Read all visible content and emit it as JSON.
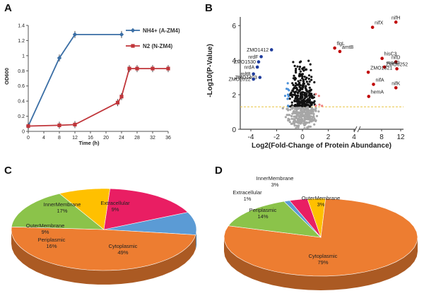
{
  "panels": [
    "A",
    "B",
    "C",
    "D"
  ],
  "chart_data": [
    {
      "panel": "A",
      "type": "line",
      "xlabel": "Time (h)",
      "ylabel": "OD600",
      "xlim": [
        0,
        36
      ],
      "ylim": [
        0,
        1.4
      ],
      "xticks": [
        0,
        4,
        8,
        12,
        16,
        20,
        24,
        28,
        32,
        36
      ],
      "yticks": [
        0,
        0.2,
        0.4,
        0.6,
        0.8,
        1.0,
        1.2,
        1.4
      ],
      "ytick_labels": [
        "0",
        "0.2",
        "0.4",
        "0.6",
        "0.8",
        "1",
        "1.2",
        "1.4"
      ],
      "legend_position": "top-right",
      "series": [
        {
          "name": "NH4+ (A-ZM4)",
          "color": "#3a6ea5",
          "marker": "diamond",
          "x": [
            0,
            8,
            12,
            24
          ],
          "y": [
            0.07,
            0.97,
            1.28,
            1.28
          ]
        },
        {
          "name": "N2 (N-ZM4)",
          "color": "#c0353a",
          "marker": "square",
          "x": [
            0,
            8,
            12,
            23,
            24,
            26,
            28,
            32,
            36
          ],
          "y": [
            0.07,
            0.08,
            0.09,
            0.38,
            0.46,
            0.83,
            0.83,
            0.83,
            0.83
          ]
        }
      ]
    },
    {
      "panel": "B",
      "type": "scatter",
      "xlabel": "Log2(Fold-Change of Protein Abundance)",
      "ylabel": "-Log10(P-Value)",
      "xticks_left": [
        -4,
        -2,
        0,
        2,
        4
      ],
      "xticks_right": [
        4,
        8,
        12
      ],
      "yticks": [
        0,
        2,
        4,
        6
      ],
      "ylim": [
        0,
        6.5
      ],
      "threshold_line_y": 1.3,
      "colors": {
        "up": "#ef7f7f",
        "down": "#4a90d9",
        "sig": "#111111",
        "ns": "#a6a6a6",
        "label_up": "#c00000",
        "label_down": "#1f3c9c",
        "threshold": "#e8c440"
      },
      "labeled_up": [
        {
          "name": "nifH",
          "x": 11,
          "y": 6.2
        },
        {
          "name": "nifX",
          "x": 6.1,
          "y": 5.9
        },
        {
          "name": "flgL",
          "x": 2.5,
          "y": 4.7
        },
        {
          "name": "amtB",
          "x": 2.9,
          "y": 4.5
        },
        {
          "name": "hisC3",
          "x": 8.1,
          "y": 4.1
        },
        {
          "name": "nifD",
          "x": 11,
          "y": 3.9
        },
        {
          "name": "modD",
          "x": 8.6,
          "y": 3.6
        },
        {
          "name": "ZMO0252",
          "x": 11.2,
          "y": 3.5
        },
        {
          "name": "ZMO1821",
          "x": 5.2,
          "y": 3.3
        },
        {
          "name": "nifA",
          "x": 6.3,
          "y": 2.6
        },
        {
          "name": "nifK",
          "x": 11,
          "y": 2.4
        },
        {
          "name": "hemA",
          "x": 5.3,
          "y": 1.9
        }
      ],
      "labeled_down": [
        {
          "name": "ZMO1412",
          "x": -2.4,
          "y": 4.6
        },
        {
          "name": "nrdF",
          "x": -3.2,
          "y": 4.2
        },
        {
          "name": "ZMO1530",
          "x": -3.4,
          "y": 3.9
        },
        {
          "name": "nrdA",
          "x": -3.5,
          "y": 3.6
        },
        {
          "name": "mltB",
          "x": -3.8,
          "y": 3.2
        },
        {
          "name": "ZMO1403",
          "x": -3.3,
          "y": 3.0
        },
        {
          "name": "ZMO2012",
          "x": -3.8,
          "y": 2.9
        }
      ]
    },
    {
      "panel": "C",
      "type": "pie",
      "slices": [
        {
          "name": "Extracellular",
          "value": 9,
          "label": "9%",
          "color": "#5b9bd5"
        },
        {
          "name": "Cytoplasmic",
          "value": 49,
          "label": "49%",
          "color": "#ed7d31"
        },
        {
          "name": "Periplasmic",
          "value": 16,
          "label": "16%",
          "color": "#8bc34a"
        },
        {
          "name": "OuterMembrane",
          "value": 9,
          "label": "9%",
          "color": "#ffc000"
        },
        {
          "name": "InnerMembrane",
          "value": 17,
          "label": "17%",
          "color": "#e91e63"
        }
      ]
    },
    {
      "panel": "D",
      "type": "pie",
      "slices": [
        {
          "name": "OuterMembrane",
          "value": 3,
          "label": "3%",
          "color": "#ffc000"
        },
        {
          "name": "Cytoplasmic",
          "value": 79,
          "label": "79%",
          "color": "#ed7d31"
        },
        {
          "name": "Periplasmic",
          "value": 14,
          "label": "14%",
          "color": "#8bc34a"
        },
        {
          "name": "Extracellular",
          "value": 1,
          "label": "1%",
          "color": "#5b9bd5"
        },
        {
          "name": "InnerMembrane",
          "value": 3,
          "label": "3%",
          "color": "#e91e63"
        }
      ]
    }
  ]
}
